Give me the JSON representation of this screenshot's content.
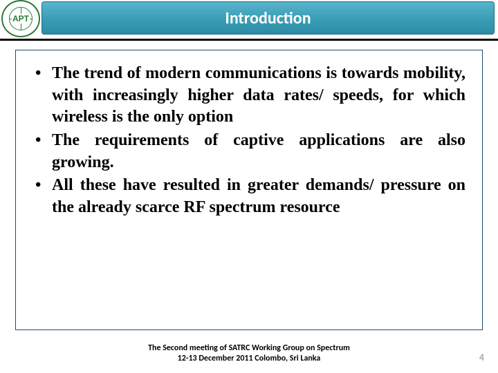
{
  "header": {
    "title": "Introduction",
    "bg_gradient_top": "#5ab4cc",
    "bg_gradient_bottom": "#2d8ca6",
    "title_color": "#ffffff"
  },
  "logo": {
    "text": "APT",
    "border_color": "#2a7a3a"
  },
  "content": {
    "bullets": [
      "The trend of modern communications is towards mobility, with increasingly higher data rates/ speeds, for which wireless is the only option",
      " The requirements of captive applications are also growing.",
      "All these have resulted in greater demands/ pressure on the already scarce RF spectrum resource"
    ],
    "box_border_color": "#1a4a6b",
    "text_color": "#000000",
    "font_size_pt": 18
  },
  "footer": {
    "line1": "The Second meeting of SATRC Working Group on Spectrum",
    "line2": "12-13 December 2011 Colombo, Sri Lanka",
    "page_number": "4",
    "page_num_color": "#8a8a8a"
  }
}
